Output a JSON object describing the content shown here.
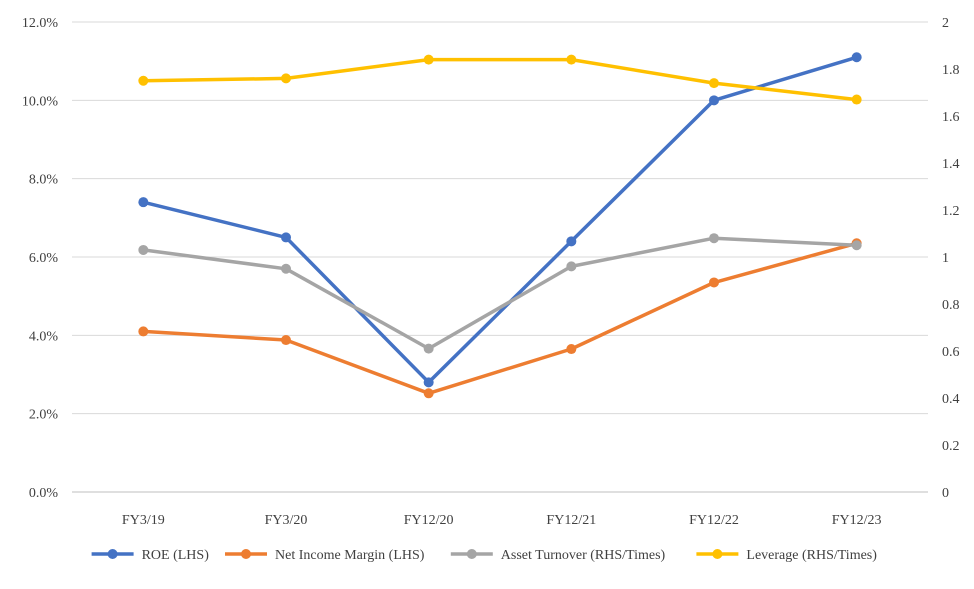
{
  "chart_data": {
    "type": "line",
    "categories": [
      "FY3/19",
      "FY3/20",
      "FY12/20",
      "FY12/21",
      "FY12/22",
      "FY12/23"
    ],
    "left_axis": {
      "min": 0,
      "max": 0.12,
      "step": 0.02,
      "tick_labels": [
        "0.0%",
        "2.0%",
        "4.0%",
        "6.0%",
        "8.0%",
        "10.0%",
        "12.0%"
      ]
    },
    "right_axis": {
      "min": 0,
      "max": 2,
      "step": 0.2,
      "tick_labels": [
        "0",
        "0.2",
        "0.4",
        "0.6",
        "0.8",
        "1",
        "1.2",
        "1.4",
        "1.6",
        "1.8",
        "2"
      ]
    },
    "grid": true,
    "legend_position": "bottom",
    "series": [
      {
        "name": "ROE (LHS)",
        "axis": "left",
        "color": "#4472C4",
        "values": [
          0.074,
          0.065,
          0.028,
          0.064,
          0.1,
          0.111
        ]
      },
      {
        "name": "Net Income Margin (LHS)",
        "axis": "left",
        "color": "#ED7D31",
        "values": [
          0.041,
          0.0388,
          0.0252,
          0.0365,
          0.0535,
          0.0635
        ]
      },
      {
        "name": "Asset Turnover (RHS/Times)",
        "axis": "right",
        "color": "#A5A5A5",
        "values": [
          1.03,
          0.95,
          0.61,
          0.96,
          1.08,
          1.05
        ]
      },
      {
        "name": "Leverage (RHS/Times)",
        "axis": "right",
        "color": "#FFC000",
        "values": [
          1.75,
          1.76,
          1.84,
          1.84,
          1.74,
          1.67
        ]
      }
    ]
  }
}
